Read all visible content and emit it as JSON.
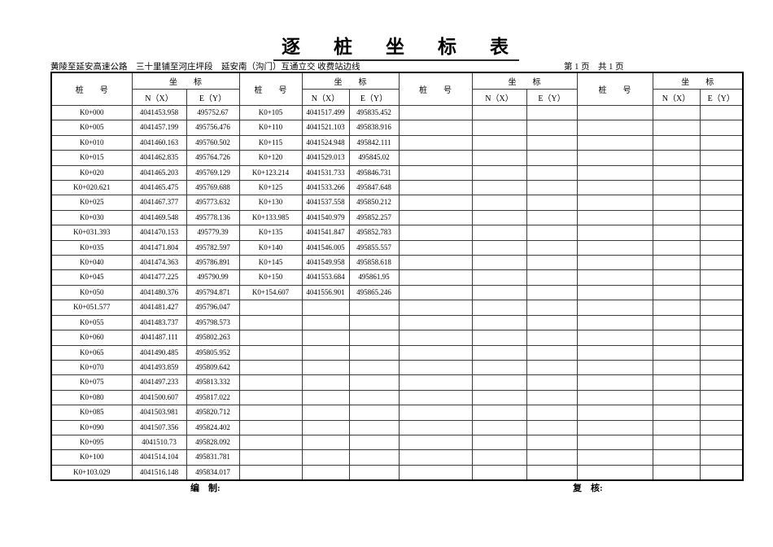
{
  "title": "逐　桩　坐　标　表",
  "subtitle": "黄陵至延安高速公路　三十里铺至河庄坪段　延安南（沟门）互通立交 收费站边线",
  "page_info": "第 1 页　共 1 页",
  "table": {
    "header": {
      "station": "桩　　号",
      "coord": "坐　　标",
      "n": "N（X）",
      "e": "E（Y）"
    },
    "row_count": 25,
    "groups": [
      {
        "rows": [
          [
            "K0+000",
            "4041453.958",
            "495752.67"
          ],
          [
            "K0+005",
            "4041457.199",
            "495756.476"
          ],
          [
            "K0+010",
            "4041460.163",
            "495760.502"
          ],
          [
            "K0+015",
            "4041462.835",
            "495764.726"
          ],
          [
            "K0+020",
            "4041465.203",
            "495769.129"
          ],
          [
            "K0+020.621",
            "4041465.475",
            "495769.688"
          ],
          [
            "K0+025",
            "4041467.377",
            "495773.632"
          ],
          [
            "K0+030",
            "4041469.548",
            "495778.136"
          ],
          [
            "K0+031.393",
            "4041470.153",
            "495779.39"
          ],
          [
            "K0+035",
            "4041471.804",
            "495782.597"
          ],
          [
            "K0+040",
            "4041474.363",
            "495786.891"
          ],
          [
            "K0+045",
            "4041477.225",
            "495790.99"
          ],
          [
            "K0+050",
            "4041480.376",
            "495794.871"
          ],
          [
            "K0+051.577",
            "4041481.427",
            "495796.047"
          ],
          [
            "K0+055",
            "4041483.737",
            "495798.573"
          ],
          [
            "K0+060",
            "4041487.111",
            "495802.263"
          ],
          [
            "K0+065",
            "4041490.485",
            "495805.952"
          ],
          [
            "K0+070",
            "4041493.859",
            "495809.642"
          ],
          [
            "K0+075",
            "4041497.233",
            "495813.332"
          ],
          [
            "K0+080",
            "4041500.607",
            "495817.022"
          ],
          [
            "K0+085",
            "4041503.981",
            "495820.712"
          ],
          [
            "K0+090",
            "4041507.356",
            "495824.402"
          ],
          [
            "K0+095",
            "4041510.73",
            "495828.092"
          ],
          [
            "K0+100",
            "4041514.104",
            "495831.781"
          ],
          [
            "K0+103.029",
            "4041516.148",
            "495834.017"
          ]
        ]
      },
      {
        "rows": [
          [
            "K0+105",
            "4041517.499",
            "495835.452"
          ],
          [
            "K0+110",
            "4041521.103",
            "495838.916"
          ],
          [
            "K0+115",
            "4041524.948",
            "495842.111"
          ],
          [
            "K0+120",
            "4041529.013",
            "495845.02"
          ],
          [
            "K0+123.214",
            "4041531.733",
            "495846.731"
          ],
          [
            "K0+125",
            "4041533.266",
            "495847.648"
          ],
          [
            "K0+130",
            "4041537.558",
            "495850.212"
          ],
          [
            "K0+133.985",
            "4041540.979",
            "495852.257"
          ],
          [
            "K0+135",
            "4041541.847",
            "495852.783"
          ],
          [
            "K0+140",
            "4041546.005",
            "495855.557"
          ],
          [
            "K0+145",
            "4041549.958",
            "495858.618"
          ],
          [
            "K0+150",
            "4041553.684",
            "495861.95"
          ],
          [
            "K0+154.607",
            "4041556.901",
            "495865.246"
          ]
        ]
      },
      {
        "rows": []
      },
      {
        "rows": []
      }
    ]
  },
  "footer": {
    "compiled": "编　制:",
    "reviewed": "复　核:"
  }
}
